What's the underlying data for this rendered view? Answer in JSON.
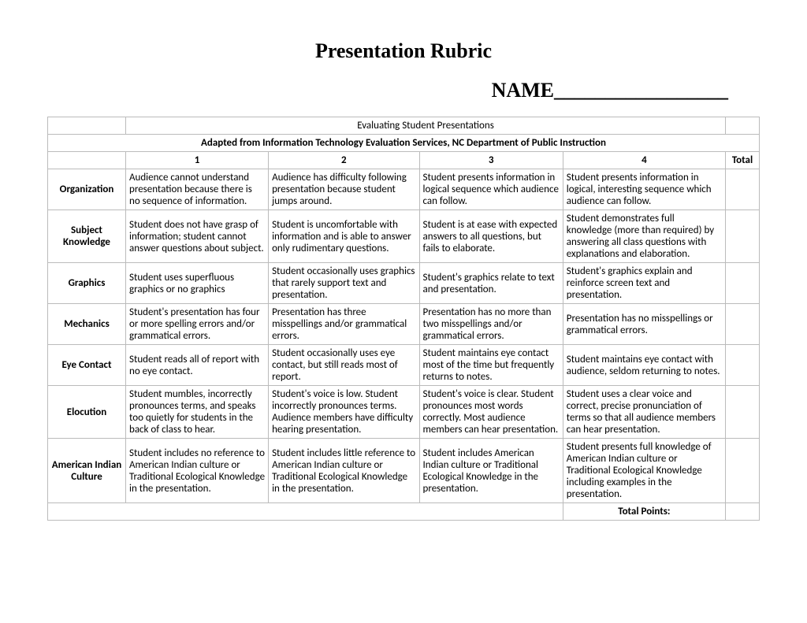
{
  "title": "Presentation Rubric",
  "name_label": "NAME_________________",
  "subtitle": "Evaluating Student Presentations",
  "adapted_line": "Adapted from Information Technology Evaluation Services, NC Department of Public Instruction",
  "headers": {
    "c1": "1",
    "c2": "2",
    "c3": "3",
    "c4": "4",
    "total": "Total"
  },
  "rows": [
    {
      "category": "Organization",
      "c1": "Audience cannot understand presentation because there is no sequence of information.",
      "c2": "Audience has difficulty following presentation because student jumps around.",
      "c3": "Student presents information in logical sequence which audience can follow.",
      "c4": "Student presents information in logical, interesting sequence which audience can follow."
    },
    {
      "category": "Subject Knowledge",
      "c1": "Student does not have grasp of information; student cannot answer questions about subject.",
      "c2": "Student is uncomfortable with information and is able to answer only rudimentary questions.",
      "c3": "Student is at ease with expected answers to all questions, but fails to elaborate.",
      "c4": "Student demonstrates full knowledge (more than required) by answering all class questions with explanations and elaboration."
    },
    {
      "category": "Graphics",
      "c1": "Student uses superfluous graphics or no graphics",
      "c2": "Student occasionally uses graphics that rarely support text and presentation.",
      "c3": "Student's graphics relate to text and presentation.",
      "c4": "Student's graphics explain and reinforce screen text and presentation."
    },
    {
      "category": "Mechanics",
      "c1": "Student's presentation has four or more spelling errors and/or grammatical errors.",
      "c2": "Presentation has three misspellings and/or grammatical errors.",
      "c3": "Presentation has no more than two misspellings and/or grammatical errors.",
      "c4": "Presentation has no misspellings or grammatical errors."
    },
    {
      "category": "Eye Contact",
      "c1": "Student reads all of report with no eye contact.",
      "c2": "Student occasionally uses eye contact, but still reads most of report.",
      "c3": "Student maintains eye contact most of the time but frequently returns to notes.",
      "c4": "Student maintains eye contact with audience, seldom returning to notes."
    },
    {
      "category": "Elocution",
      "c1": "Student mumbles, incorrectly pronounces terms, and speaks too quietly for students in the back of class to hear.",
      "c2": "Student's voice is low. Student incorrectly pronounces terms. Audience members have difficulty hearing presentation.",
      "c3": "Student's voice is clear. Student pronounces most words correctly. Most audience members can hear presentation.",
      "c4": "Student uses a clear voice and correct, precise pronunciation of terms so that all audience members can hear presentation."
    },
    {
      "category": "American Indian Culture",
      "c1": "Student includes no reference to American Indian culture or Traditional Ecological Knowledge in the presentation.",
      "c2": "Student includes little reference to American Indian culture or Traditional Ecological Knowledge in the presentation.",
      "c3": "Student includes American Indian culture or Traditional Ecological Knowledge in the presentation.",
      "c4": "Student presents full knowledge of American Indian culture or Traditional Ecological Knowledge including examples in the presentation."
    }
  ],
  "total_points_label": "Total Points:"
}
